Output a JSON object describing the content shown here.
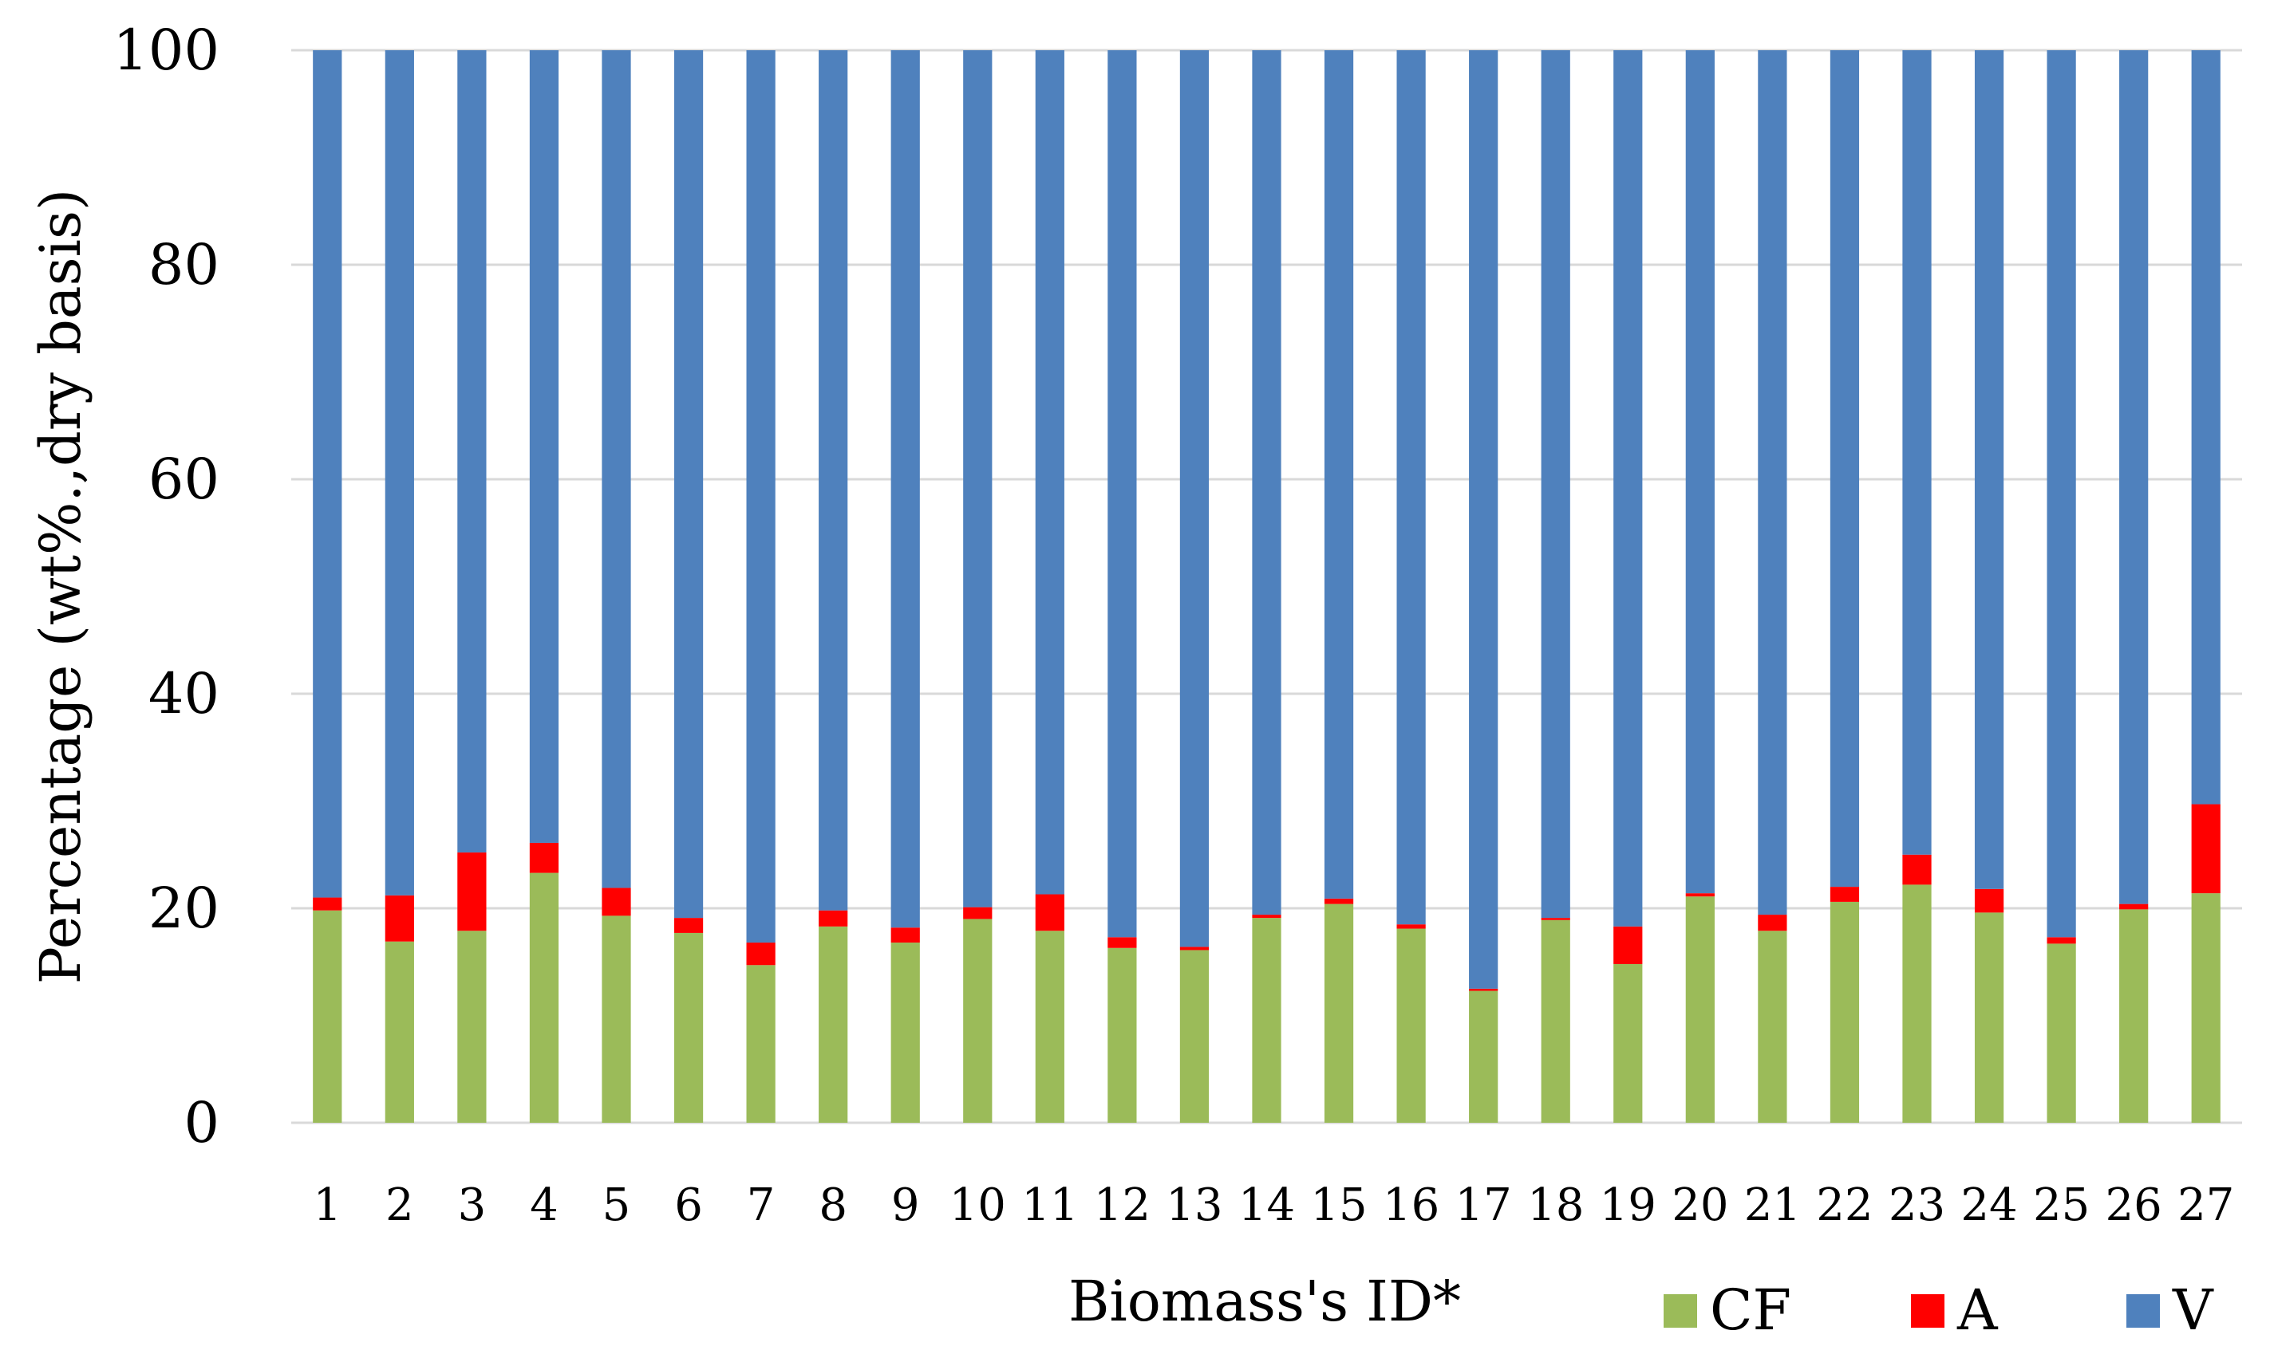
{
  "chart_data": {
    "type": "bar",
    "stacked": true,
    "xlabel": "Biomass's ID*",
    "ylabel": "Percentage (wt%.,dry basis)",
    "ylim": [
      0,
      100
    ],
    "yticks": [
      0,
      20,
      40,
      60,
      80,
      100
    ],
    "grid": true,
    "legend_position": "bottom-right",
    "categories": [
      "1",
      "2",
      "3",
      "4",
      "5",
      "6",
      "7",
      "8",
      "9",
      "10",
      "11",
      "12",
      "13",
      "14",
      "15",
      "16",
      "17",
      "18",
      "19",
      "20",
      "21",
      "22",
      "23",
      "24",
      "25",
      "26",
      "27"
    ],
    "series": [
      {
        "name": "CF",
        "color": "#9bbb59",
        "values": [
          19.8,
          16.9,
          17.9,
          23.3,
          19.3,
          17.7,
          14.7,
          18.3,
          16.8,
          19.0,
          17.9,
          16.3,
          16.1,
          19.1,
          20.4,
          18.1,
          12.3,
          18.9,
          14.8,
          21.1,
          17.9,
          20.6,
          22.2,
          19.6,
          16.7,
          19.9,
          21.4
        ]
      },
      {
        "name": "A",
        "color": "#ff0000",
        "values": [
          1.2,
          4.3,
          7.3,
          2.8,
          2.6,
          1.4,
          2.1,
          1.5,
          1.4,
          1.1,
          3.4,
          1.0,
          0.3,
          0.3,
          0.5,
          0.4,
          0.2,
          0.2,
          3.5,
          0.3,
          1.5,
          1.4,
          2.8,
          2.2,
          0.6,
          0.5,
          8.3
        ]
      },
      {
        "name": "V",
        "color": "#4f81bd",
        "values": [
          79.0,
          78.8,
          74.8,
          73.9,
          78.1,
          80.9,
          83.2,
          80.2,
          81.8,
          79.9,
          78.7,
          82.7,
          83.6,
          80.6,
          79.1,
          81.5,
          87.5,
          80.9,
          81.7,
          78.6,
          80.6,
          78.0,
          75.0,
          78.2,
          82.7,
          79.6,
          70.3
        ]
      }
    ]
  }
}
